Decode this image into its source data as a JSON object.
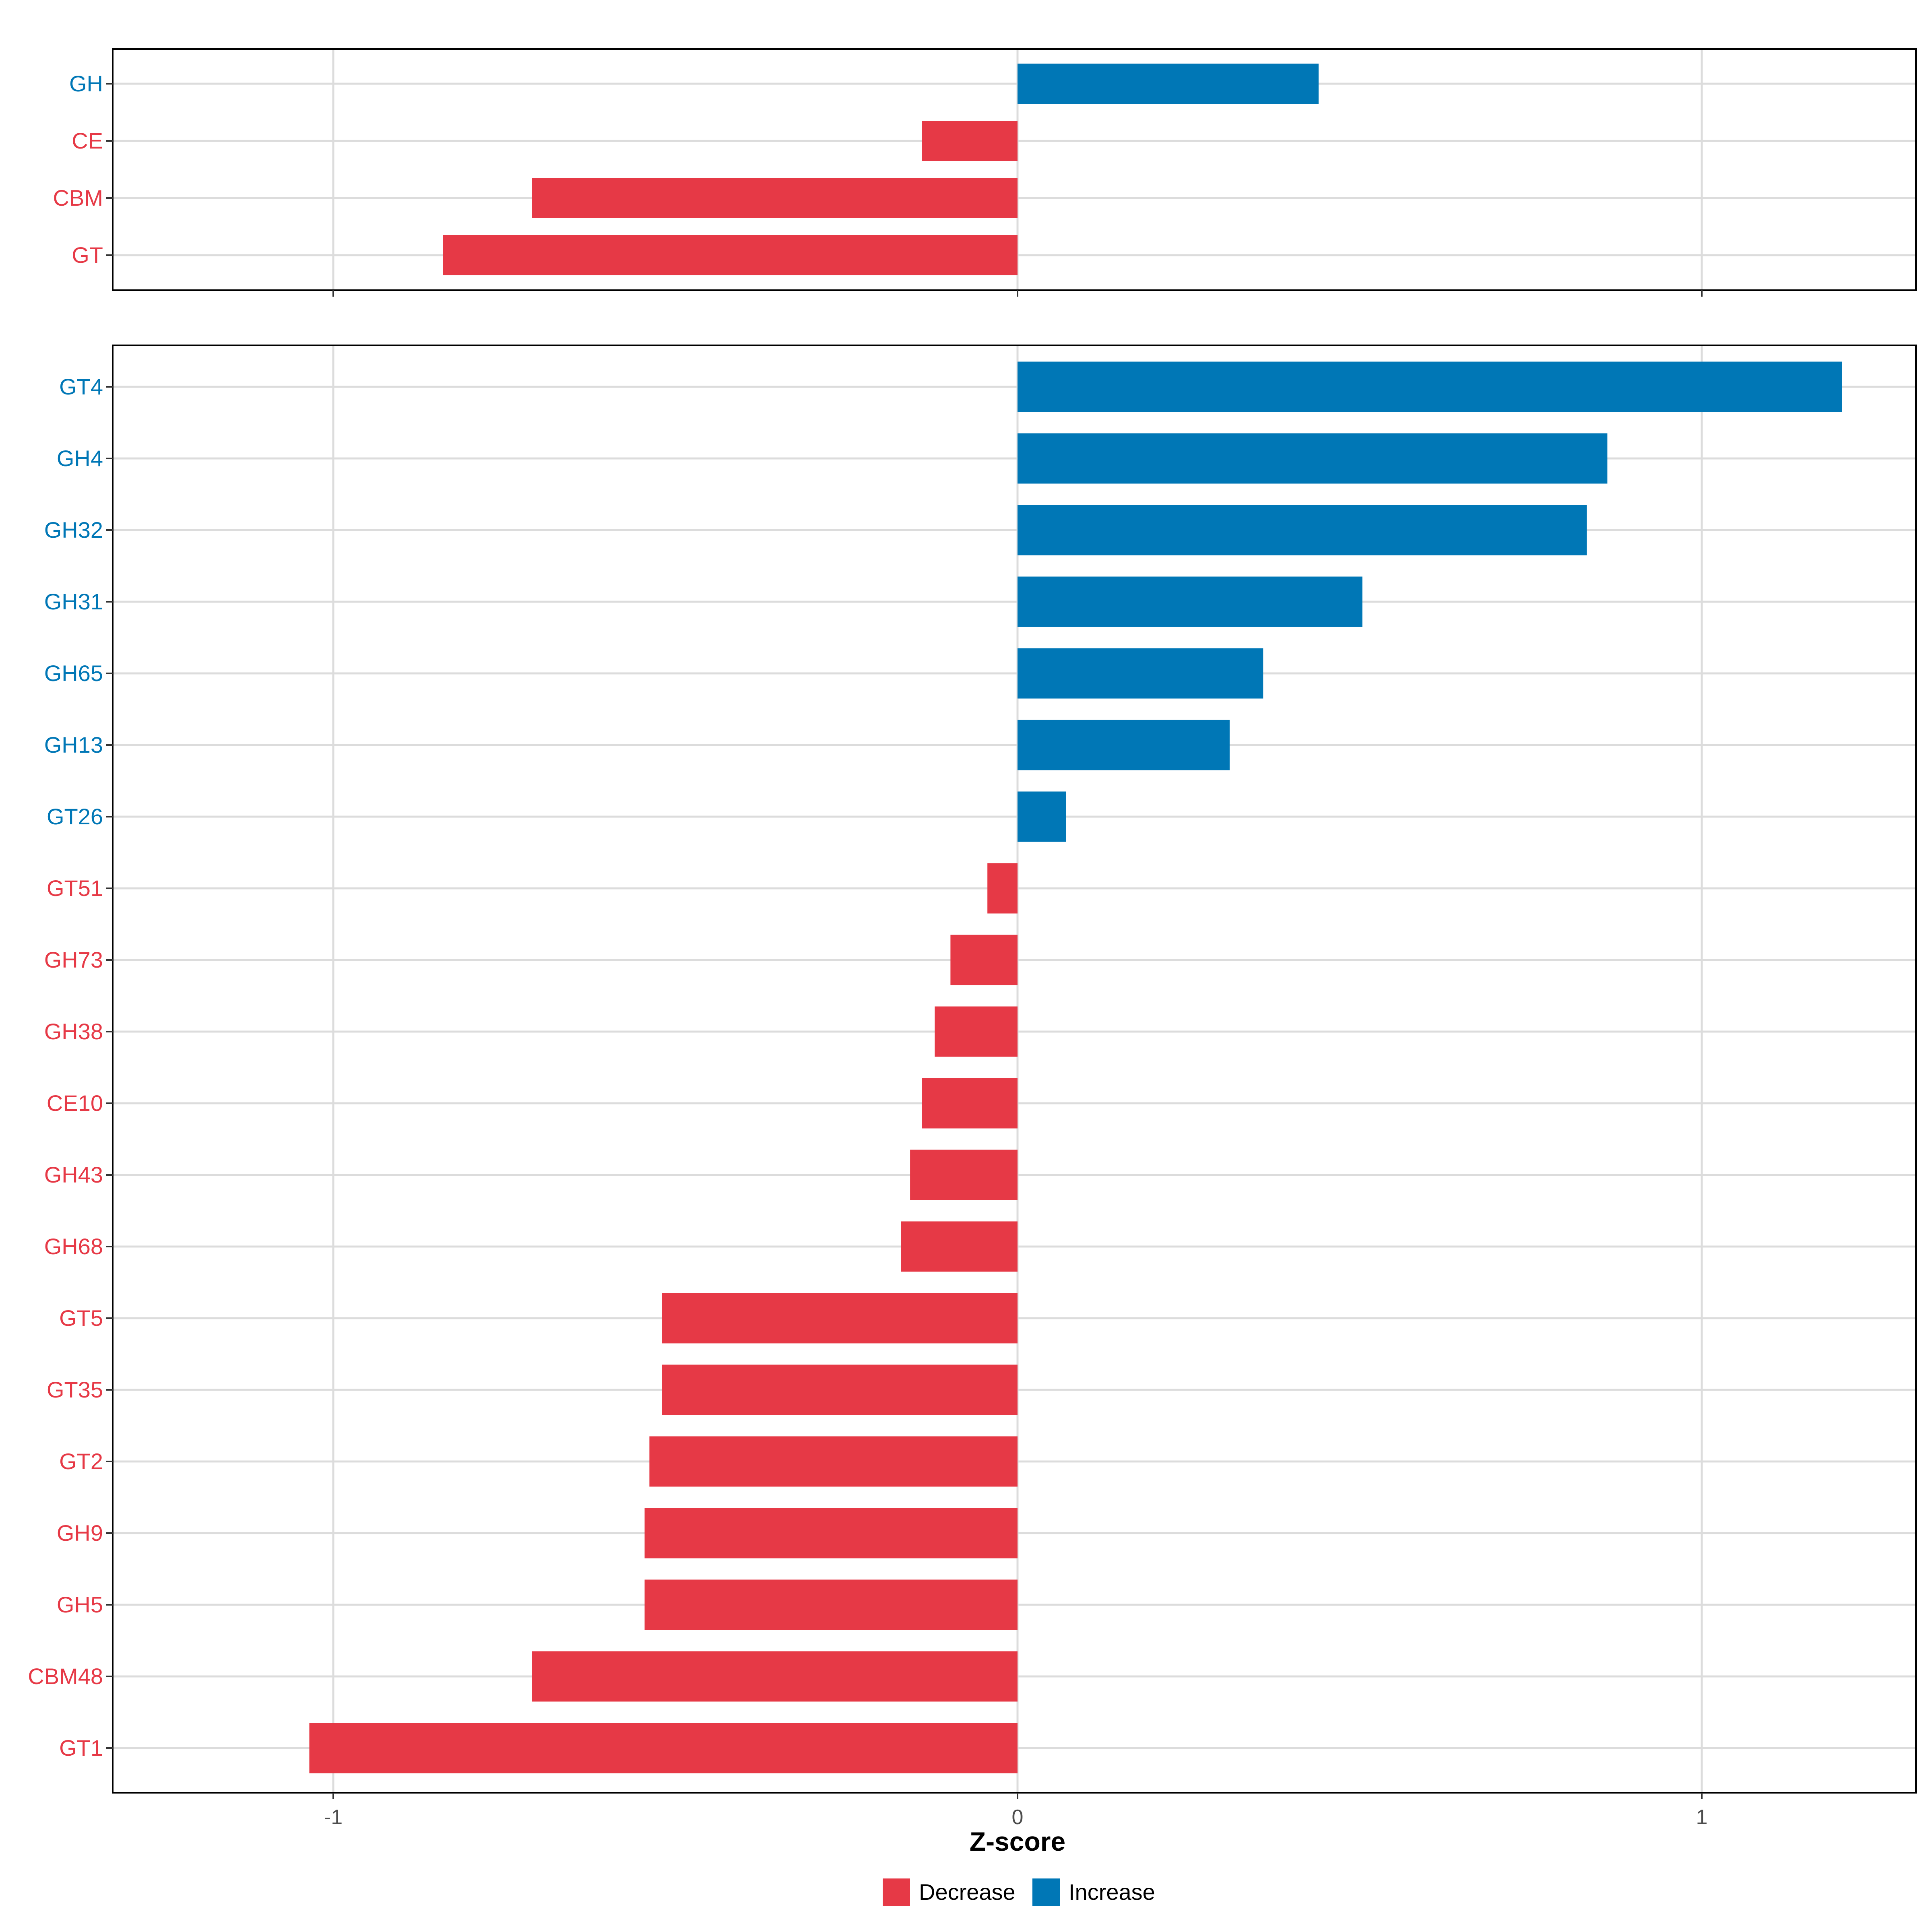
{
  "chart_data": {
    "type": "bar",
    "orientation": "horizontal",
    "xlabel": "Z-score",
    "xlim": [
      -1.3,
      1.32
    ],
    "x_ticks": [
      -1,
      0,
      1
    ],
    "x_tick_labels": [
      "-1",
      "0",
      "1"
    ],
    "grid": true,
    "legend_position": "bottom",
    "legend": [
      {
        "label": "Decrease",
        "color": "#E63946"
      },
      {
        "label": "Increase",
        "color": "#0077B6"
      }
    ],
    "colors": {
      "Decrease": "#E63946",
      "Increase": "#0077B6"
    },
    "panels": [
      {
        "name": "top-panel",
        "categories": [
          "GH",
          "CE",
          "CBM",
          "GT"
        ],
        "values": [
          0.44,
          -0.14,
          -0.71,
          -0.84
        ],
        "groups": [
          "Increase",
          "Decrease",
          "Decrease",
          "Decrease"
        ]
      },
      {
        "name": "bottom-panel",
        "categories": [
          "GT4",
          "GH4",
          "GH32",
          "GH31",
          "GH65",
          "GH13",
          "GT26",
          "GT51",
          "GH73",
          "GH38",
          "CE10",
          "GH43",
          "GH68",
          "GT5",
          "GT35",
          "GT2",
          "GH9",
          "GH5",
          "CBM48",
          "GT1"
        ],
        "values": [
          1.205,
          0.862,
          0.832,
          0.504,
          0.359,
          0.31,
          0.071,
          -0.044,
          -0.098,
          -0.121,
          -0.14,
          -0.157,
          -0.17,
          -0.52,
          -0.52,
          -0.538,
          -0.545,
          -0.545,
          -0.71,
          -1.035
        ],
        "groups": [
          "Increase",
          "Increase",
          "Increase",
          "Increase",
          "Increase",
          "Increase",
          "Increase",
          "Decrease",
          "Decrease",
          "Decrease",
          "Decrease",
          "Decrease",
          "Decrease",
          "Decrease",
          "Decrease",
          "Decrease",
          "Decrease",
          "Decrease",
          "Decrease",
          "Decrease"
        ]
      }
    ]
  }
}
